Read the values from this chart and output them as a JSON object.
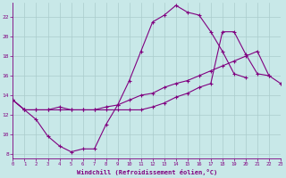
{
  "background_color": "#c8e8e8",
  "line_color": "#800080",
  "grid_color": "#aacccc",
  "xlabel": "Windchill (Refroidissement éolien,°C)",
  "xlim": [
    0,
    23
  ],
  "ylim": [
    7.5,
    23.5
  ],
  "yticks": [
    8,
    10,
    12,
    14,
    16,
    18,
    20,
    22
  ],
  "xticks": [
    0,
    1,
    2,
    3,
    4,
    5,
    6,
    7,
    8,
    9,
    10,
    11,
    12,
    13,
    14,
    15,
    16,
    17,
    18,
    19,
    20,
    21,
    22,
    23
  ],
  "series": [
    {
      "x": [
        0,
        1,
        2,
        3,
        4,
        5,
        6,
        7,
        8,
        9,
        10,
        11,
        12,
        13,
        14,
        15,
        16,
        17,
        18,
        19,
        20
      ],
      "y": [
        13.5,
        12.5,
        11.5,
        9.8,
        8.8,
        8.2,
        8.5,
        8.5,
        11.0,
        13.0,
        15.5,
        18.5,
        21.5,
        22.2,
        23.2,
        22.5,
        22.2,
        20.5,
        18.5,
        16.2,
        15.8
      ]
    },
    {
      "x": [
        0,
        1,
        2,
        3,
        4,
        5,
        6,
        7,
        8,
        9,
        10,
        11,
        12,
        13,
        14,
        15,
        16,
        17,
        18,
        19,
        20,
        21,
        22,
        23
      ],
      "y": [
        13.5,
        12.5,
        12.5,
        12.5,
        12.5,
        12.5,
        12.5,
        12.5,
        12.8,
        13.0,
        13.5,
        14.0,
        14.2,
        14.8,
        15.2,
        15.5,
        16.0,
        16.5,
        17.0,
        17.5,
        18.0,
        18.5,
        16.0,
        15.2
      ]
    },
    {
      "x": [
        0,
        1,
        2,
        3,
        4,
        5,
        6,
        7,
        8,
        9,
        10,
        11,
        12,
        13,
        14,
        15,
        16,
        17,
        18,
        19,
        20,
        21,
        22
      ],
      "y": [
        13.5,
        12.5,
        12.5,
        12.5,
        12.8,
        12.5,
        12.5,
        12.5,
        12.5,
        12.5,
        12.5,
        12.5,
        12.8,
        13.2,
        13.8,
        14.2,
        14.8,
        15.2,
        20.5,
        20.5,
        18.2,
        16.2,
        16.0
      ]
    }
  ]
}
